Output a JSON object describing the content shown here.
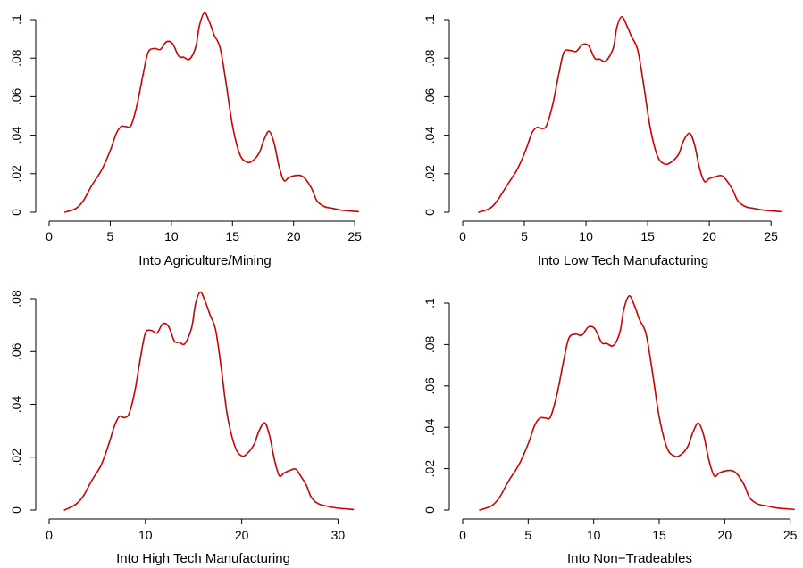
{
  "chart_data": [
    {
      "type": "line",
      "xlabel": "Into Agriculture/Mining",
      "ylabel": "",
      "xlim": [
        0,
        25.5
      ],
      "ylim": [
        0,
        0.1
      ],
      "xticks": [
        0,
        5,
        10,
        15,
        20,
        25
      ],
      "yticks": [
        0,
        0.02,
        0.04,
        0.06,
        0.08,
        0.1
      ],
      "xtick_labels": [
        "0",
        "5",
        "10",
        "15",
        "20",
        "25"
      ],
      "ytick_labels": [
        "0",
        ".02",
        ".04",
        ".06",
        ".08",
        ".1"
      ],
      "color": "#d00000",
      "x": [
        1.3,
        2.2,
        2.8,
        3.5,
        4.3,
        5.0,
        5.5,
        5.9,
        6.3,
        6.7,
        7.2,
        7.7,
        8.1,
        8.6,
        9.1,
        9.6,
        10.1,
        10.6,
        11.0,
        11.5,
        12.0,
        12.3,
        12.7,
        13.1,
        13.5,
        14.0,
        14.5,
        15.0,
        15.6,
        16.2,
        16.7,
        17.2,
        17.6,
        18.0,
        18.4,
        18.8,
        19.2,
        19.6,
        20.1,
        20.6,
        21.0,
        21.5,
        21.9,
        22.5,
        23.2,
        24.0,
        25.3
      ],
      "y": [
        0.0,
        0.002,
        0.006,
        0.014,
        0.022,
        0.032,
        0.041,
        0.0445,
        0.0445,
        0.045,
        0.056,
        0.072,
        0.083,
        0.085,
        0.0845,
        0.0885,
        0.0875,
        0.081,
        0.0805,
        0.0795,
        0.086,
        0.097,
        0.1035,
        0.099,
        0.092,
        0.085,
        0.066,
        0.045,
        0.03,
        0.026,
        0.027,
        0.031,
        0.038,
        0.042,
        0.036,
        0.024,
        0.0165,
        0.018,
        0.019,
        0.019,
        0.017,
        0.012,
        0.006,
        0.003,
        0.002,
        0.001,
        0.0003
      ]
    },
    {
      "type": "line",
      "xlabel": "Into Low Tech Manufacturing",
      "ylabel": "",
      "xlim": [
        0,
        26
      ],
      "ylim": [
        0,
        0.1
      ],
      "xticks": [
        0,
        5,
        10,
        15,
        20,
        25
      ],
      "yticks": [
        0,
        0.02,
        0.04,
        0.06,
        0.08,
        0.1
      ],
      "xtick_labels": [
        "0",
        "5",
        "10",
        "15",
        "20",
        "25"
      ],
      "ytick_labels": [
        "0",
        ".02",
        ".04",
        ".06",
        ".08",
        ".1"
      ],
      "color": "#d00000",
      "x": [
        1.3,
        2.2,
        2.8,
        3.6,
        4.4,
        5.1,
        5.6,
        6.0,
        6.4,
        6.8,
        7.3,
        7.8,
        8.2,
        8.7,
        9.2,
        9.7,
        10.2,
        10.7,
        11.1,
        11.6,
        12.2,
        12.5,
        12.9,
        13.3,
        13.7,
        14.2,
        14.7,
        15.2,
        15.8,
        16.4,
        16.9,
        17.5,
        17.9,
        18.4,
        18.8,
        19.2,
        19.6,
        20.0,
        20.5,
        21.0,
        21.4,
        21.9,
        22.3,
        22.9,
        23.6,
        24.5,
        25.8
      ],
      "y": [
        0.0,
        0.002,
        0.006,
        0.014,
        0.022,
        0.032,
        0.041,
        0.044,
        0.0435,
        0.045,
        0.056,
        0.072,
        0.083,
        0.084,
        0.0835,
        0.087,
        0.0865,
        0.08,
        0.0795,
        0.0785,
        0.085,
        0.096,
        0.1015,
        0.097,
        0.091,
        0.084,
        0.065,
        0.044,
        0.029,
        0.025,
        0.026,
        0.03,
        0.037,
        0.041,
        0.035,
        0.023,
        0.016,
        0.0175,
        0.0185,
        0.019,
        0.0165,
        0.0115,
        0.006,
        0.003,
        0.002,
        0.001,
        0.0003
      ]
    },
    {
      "type": "line",
      "xlabel": "Into High Tech Manufacturing",
      "ylabel": "",
      "xlim": [
        0,
        32
      ],
      "ylim": [
        0,
        0.085
      ],
      "xticks": [
        0,
        10,
        20,
        30
      ],
      "yticks": [
        0,
        0.02,
        0.04,
        0.06,
        0.08
      ],
      "xtick_labels": [
        "0",
        "10",
        "20",
        "30"
      ],
      "ytick_labels": [
        "0",
        ".02",
        ".04",
        ".06",
        ".08"
      ],
      "color": "#d00000",
      "x": [
        1.6,
        2.7,
        3.5,
        4.4,
        5.4,
        6.2,
        6.8,
        7.3,
        7.8,
        8.3,
        8.9,
        9.5,
        10.0,
        10.6,
        11.2,
        11.8,
        12.4,
        13.0,
        13.5,
        14.1,
        14.8,
        15.2,
        15.7,
        16.2,
        16.7,
        17.3,
        17.9,
        18.5,
        19.3,
        20.0,
        20.6,
        21.3,
        21.8,
        22.4,
        22.9,
        23.4,
        23.9,
        24.4,
        25.0,
        25.6,
        26.1,
        26.7,
        27.2,
        27.9,
        28.8,
        29.8,
        31.6
      ],
      "y": [
        0.0,
        0.002,
        0.005,
        0.011,
        0.017,
        0.025,
        0.032,
        0.0355,
        0.035,
        0.0365,
        0.045,
        0.058,
        0.067,
        0.068,
        0.067,
        0.0705,
        0.0695,
        0.064,
        0.0635,
        0.063,
        0.069,
        0.078,
        0.0825,
        0.079,
        0.074,
        0.068,
        0.053,
        0.036,
        0.024,
        0.0205,
        0.0215,
        0.025,
        0.03,
        0.033,
        0.028,
        0.019,
        0.013,
        0.014,
        0.015,
        0.0155,
        0.013,
        0.0095,
        0.005,
        0.0025,
        0.0015,
        0.0008,
        0.0002
      ]
    },
    {
      "type": "line",
      "xlabel": "Into Non−Tradeables",
      "ylabel": "",
      "xlim": [
        0,
        25.5
      ],
      "ylim": [
        0,
        0.1
      ],
      "xticks": [
        0,
        5,
        10,
        15,
        20,
        25
      ],
      "yticks": [
        0,
        0.02,
        0.04,
        0.06,
        0.08,
        0.1
      ],
      "xtick_labels": [
        "0",
        "5",
        "10",
        "15",
        "20",
        "25"
      ],
      "ytick_labels": [
        "0",
        ".02",
        ".04",
        ".06",
        ".08",
        ".1"
      ],
      "color": "#d00000",
      "x": [
        1.3,
        2.2,
        2.8,
        3.5,
        4.3,
        5.0,
        5.5,
        5.9,
        6.3,
        6.7,
        7.2,
        7.7,
        8.1,
        8.6,
        9.1,
        9.6,
        10.1,
        10.6,
        11.0,
        11.5,
        12.0,
        12.3,
        12.7,
        13.1,
        13.5,
        14.0,
        14.5,
        15.0,
        15.6,
        16.2,
        16.7,
        17.2,
        17.6,
        18.0,
        18.4,
        18.8,
        19.2,
        19.6,
        20.1,
        20.6,
        21.0,
        21.5,
        21.9,
        22.5,
        23.2,
        24.0,
        25.3
      ],
      "y": [
        0.0,
        0.002,
        0.006,
        0.014,
        0.022,
        0.032,
        0.041,
        0.0445,
        0.0445,
        0.045,
        0.056,
        0.072,
        0.083,
        0.085,
        0.0845,
        0.0885,
        0.0875,
        0.081,
        0.0805,
        0.0795,
        0.086,
        0.097,
        0.1035,
        0.099,
        0.092,
        0.085,
        0.066,
        0.045,
        0.03,
        0.026,
        0.027,
        0.031,
        0.038,
        0.042,
        0.036,
        0.024,
        0.0165,
        0.018,
        0.019,
        0.019,
        0.017,
        0.012,
        0.006,
        0.003,
        0.002,
        0.001,
        0.0003
      ]
    }
  ]
}
